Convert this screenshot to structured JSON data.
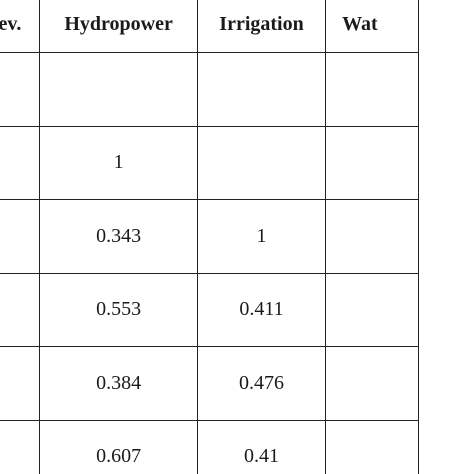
{
  "table": {
    "columns": [
      "Dev.",
      "Hydropower",
      "Irrigation",
      "Wat"
    ],
    "rows": [
      [
        "",
        "",
        "",
        ""
      ],
      [
        "",
        "1",
        "",
        ""
      ],
      [
        "",
        "0.343",
        "1",
        ""
      ],
      [
        "",
        "0.553",
        "0.411",
        ""
      ],
      [
        "",
        "0.384",
        "0.476",
        ""
      ],
      [
        "",
        "0.607",
        "0.41",
        ""
      ]
    ]
  }
}
